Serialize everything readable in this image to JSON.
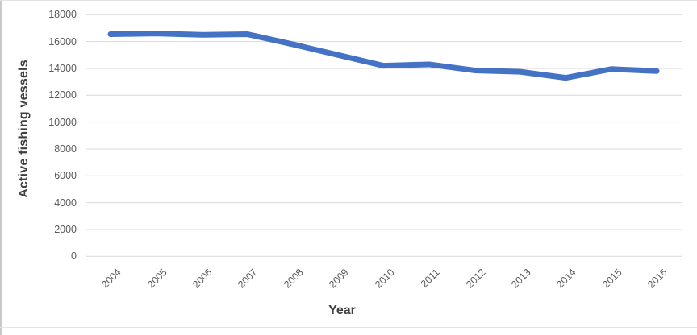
{
  "chart_data": {
    "type": "line",
    "title": "",
    "xlabel": "Year",
    "ylabel": "Active fishing vessels",
    "categories": [
      "2004",
      "2005",
      "2006",
      "2007",
      "2008",
      "2009",
      "2010",
      "2011",
      "2012",
      "2013",
      "2014",
      "2015",
      "2016"
    ],
    "values": [
      16550,
      16600,
      16500,
      16550,
      15800,
      15000,
      14200,
      14300,
      13850,
      13750,
      13300,
      13950,
      13800
    ],
    "ylim": [
      0,
      18000
    ],
    "ytick_step": 2000,
    "yticks": [
      18000,
      16000,
      14000,
      12000,
      10000,
      8000,
      6000,
      4000,
      2000,
      0
    ],
    "grid": "horizontal",
    "legend": "none",
    "colors": {
      "line": "#4472C4",
      "gridline": "#D9D9D9",
      "tick_label": "#595959",
      "axis_title": "#3F3F3F",
      "background": "#FFFFFF",
      "border": "#C9C9C9"
    }
  }
}
